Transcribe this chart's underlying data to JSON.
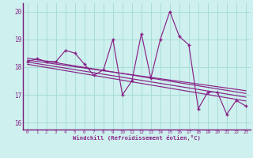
{
  "x": [
    0,
    1,
    2,
    3,
    4,
    5,
    6,
    7,
    8,
    9,
    10,
    11,
    12,
    13,
    14,
    15,
    16,
    17,
    18,
    19,
    20,
    21,
    22,
    23
  ],
  "y_main": [
    18.2,
    18.3,
    18.2,
    18.2,
    18.6,
    18.5,
    18.1,
    17.7,
    17.9,
    19.0,
    17.0,
    17.5,
    19.2,
    17.6,
    19.0,
    20.0,
    19.1,
    18.8,
    16.5,
    17.1,
    17.1,
    16.3,
    16.8,
    16.6
  ],
  "trend_lines": [
    {
      "x_start": 0,
      "x_end": 23,
      "y_start": 18.25,
      "y_end": 17.15
    },
    {
      "x_start": 0,
      "x_end": 23,
      "y_start": 18.32,
      "y_end": 17.05
    },
    {
      "x_start": 0,
      "x_end": 23,
      "y_start": 18.18,
      "y_end": 16.92
    },
    {
      "x_start": 0,
      "x_end": 23,
      "y_start": 18.1,
      "y_end": 16.78
    }
  ],
  "color": "#882288",
  "bg_color": "#cef0ee",
  "grid_color": "#a8ddd8",
  "spine_color": "#7a1a7a",
  "ylim": [
    15.75,
    20.3
  ],
  "xlim": [
    -0.5,
    23.5
  ],
  "yticks": [
    16,
    17,
    18,
    19,
    20
  ],
  "xticks": [
    0,
    1,
    2,
    3,
    4,
    5,
    6,
    7,
    8,
    9,
    10,
    11,
    12,
    13,
    14,
    15,
    16,
    17,
    18,
    19,
    20,
    21,
    22,
    23
  ],
  "xlabel": "Windchill (Refroidissement éolien,°C)",
  "tick_color": "#882288"
}
